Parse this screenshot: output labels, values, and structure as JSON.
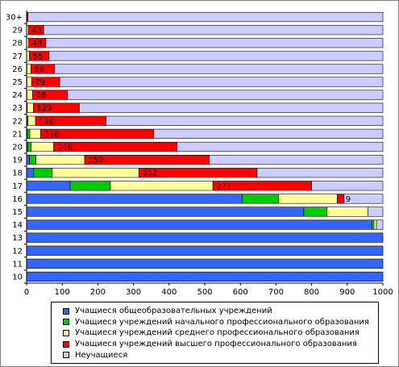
{
  "chart_data": {
    "type": "bar",
    "orientation": "horizontal",
    "stacked": true,
    "categories": [
      "10",
      "11",
      "12",
      "13",
      "14",
      "15",
      "16",
      "17",
      "18",
      "19",
      "20",
      "21",
      "22",
      "23",
      "24",
      "25",
      "26",
      "27",
      "28",
      "29",
      "30+"
    ],
    "series": [
      {
        "name": "Учащиеся общеобразовательных учреждений",
        "color": "#3366ff",
        "values": [
          1000,
          1000,
          1000,
          1000,
          970,
          778,
          605,
          122,
          20,
          8,
          3,
          2,
          1,
          0,
          0,
          0,
          0,
          0,
          0,
          0,
          0
        ]
      },
      {
        "name": "Учащиеся учреждений начального профессионального образования",
        "color": "#00cc00",
        "values": [
          0,
          0,
          0,
          0,
          5,
          65,
          102,
          113,
          52,
          18,
          10,
          7,
          3,
          2,
          1,
          1,
          1,
          0,
          0,
          0,
          0
        ]
      },
      {
        "name": "Учащиеся учреждений среднего профессионального образования",
        "color": "#ffff99",
        "values": [
          0,
          0,
          0,
          0,
          7,
          115,
          165,
          288,
          243,
          137,
          63,
          30,
          21,
          17,
          16,
          13,
          11,
          8,
          6,
          5,
          0
        ]
      },
      {
        "name": "Учащиеся учреждений высшего профессионального образования",
        "color": "#ff0000",
        "values": [
          0,
          0,
          0,
          0,
          0,
          0,
          19,
          277,
          332,
          350,
          346,
          318,
          198,
          129,
          98,
          79,
          66,
          55,
          48,
          43,
          4
        ]
      },
      {
        "name": "Неучащиеся",
        "color": "#ccccff",
        "values": [
          0,
          0,
          0,
          0,
          18,
          42,
          109,
          200,
          353,
          487,
          578,
          643,
          777,
          852,
          885,
          907,
          922,
          937,
          946,
          952,
          996
        ]
      }
    ],
    "data_labels": [
      {
        "category": "16",
        "value": "19"
      },
      {
        "category": "17",
        "value": "277"
      },
      {
        "category": "18",
        "value": "332"
      },
      {
        "category": "19",
        "value": "350"
      },
      {
        "category": "20",
        "value": "346"
      },
      {
        "category": "21",
        "value": "318"
      },
      {
        "category": "22",
        "value": "198"
      },
      {
        "category": "23",
        "value": "129"
      },
      {
        "category": "24",
        "value": "98"
      },
      {
        "category": "25",
        "value": "79"
      },
      {
        "category": "26",
        "value": "66"
      },
      {
        "category": "27",
        "value": "55"
      },
      {
        "category": "28",
        "value": "48"
      },
      {
        "category": "29",
        "value": "43"
      }
    ],
    "xlim": [
      0,
      1000
    ],
    "xticks": [
      0,
      100,
      200,
      300,
      400,
      500,
      600,
      700,
      800,
      900,
      1000
    ],
    "title": "",
    "xlabel": "",
    "ylabel": "",
    "grid": false,
    "legend_position": "bottom"
  }
}
